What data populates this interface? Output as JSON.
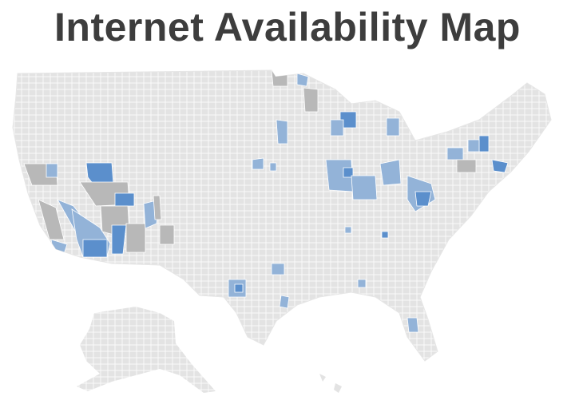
{
  "header": {
    "title": "Internet Availability Map"
  }
}
